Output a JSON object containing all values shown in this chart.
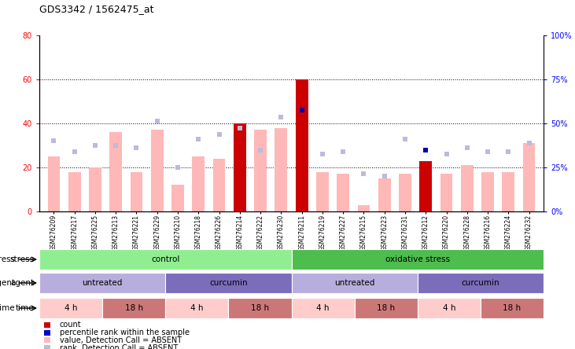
{
  "title": "GDS3342 / 1562475_at",
  "samples": [
    "GSM276209",
    "GSM276217",
    "GSM276225",
    "GSM276213",
    "GSM276221",
    "GSM276229",
    "GSM276210",
    "GSM276218",
    "GSM276226",
    "GSM276214",
    "GSM276222",
    "GSM276230",
    "GSM276211",
    "GSM276219",
    "GSM276227",
    "GSM276215",
    "GSM276223",
    "GSM276231",
    "GSM276212",
    "GSM276220",
    "GSM276228",
    "GSM276216",
    "GSM276224",
    "GSM276232"
  ],
  "pink_bars": [
    25,
    18,
    20,
    36,
    18,
    37,
    12,
    25,
    24,
    40,
    37,
    38,
    20,
    18,
    17,
    3,
    15,
    17,
    23,
    17,
    21,
    18,
    18,
    31
  ],
  "red_bars": [
    0,
    0,
    0,
    0,
    0,
    0,
    0,
    0,
    0,
    40,
    0,
    0,
    60,
    0,
    0,
    0,
    0,
    0,
    23,
    0,
    0,
    0,
    0,
    0
  ],
  "blue_markers": [
    32,
    27,
    30,
    30,
    29,
    41,
    20,
    33,
    35,
    38,
    28,
    43,
    46,
    26,
    27,
    17,
    16,
    33,
    28,
    26,
    29,
    27,
    27,
    31
  ],
  "dark_blue_markers": [
    0,
    0,
    0,
    0,
    0,
    0,
    0,
    0,
    0,
    0,
    0,
    0,
    46,
    0,
    0,
    0,
    0,
    0,
    28,
    0,
    0,
    0,
    0,
    0
  ],
  "ylim_left": [
    0,
    80
  ],
  "ylim_right": [
    0,
    100
  ],
  "yticks_left": [
    0,
    20,
    40,
    60,
    80
  ],
  "hlines": [
    20,
    40,
    60
  ],
  "stress_groups": [
    {
      "label": "control",
      "start": 0,
      "end": 12,
      "color": "#90EE90"
    },
    {
      "label": "oxidative stress",
      "start": 12,
      "end": 24,
      "color": "#4DBD4D"
    }
  ],
  "agent_groups": [
    {
      "label": "untreated",
      "start": 0,
      "end": 6,
      "color": "#B8AEDD"
    },
    {
      "label": "curcumin",
      "start": 6,
      "end": 12,
      "color": "#7B6DBB"
    },
    {
      "label": "untreated",
      "start": 12,
      "end": 18,
      "color": "#B8AEDD"
    },
    {
      "label": "curcumin",
      "start": 18,
      "end": 24,
      "color": "#7B6DBB"
    }
  ],
  "time_groups": [
    {
      "label": "4 h",
      "start": 0,
      "end": 3,
      "color": "#FFCCCC"
    },
    {
      "label": "18 h",
      "start": 3,
      "end": 6,
      "color": "#CC7777"
    },
    {
      "label": "4 h",
      "start": 6,
      "end": 9,
      "color": "#FFCCCC"
    },
    {
      "label": "18 h",
      "start": 9,
      "end": 12,
      "color": "#CC7777"
    },
    {
      "label": "4 h",
      "start": 12,
      "end": 15,
      "color": "#FFCCCC"
    },
    {
      "label": "18 h",
      "start": 15,
      "end": 18,
      "color": "#CC7777"
    },
    {
      "label": "4 h",
      "start": 18,
      "end": 21,
      "color": "#FFCCCC"
    },
    {
      "label": "18 h",
      "start": 21,
      "end": 24,
      "color": "#CC7777"
    }
  ],
  "legend_items": [
    {
      "color": "#CC0000",
      "label": "count",
      "marker": "s"
    },
    {
      "color": "#0000CC",
      "label": "percentile rank within the sample",
      "marker": "s"
    },
    {
      "color": "#FFB8B8",
      "label": "value, Detection Call = ABSENT",
      "marker": "s"
    },
    {
      "color": "#BBBBDD",
      "label": "rank, Detection Call = ABSENT",
      "marker": "s"
    }
  ]
}
